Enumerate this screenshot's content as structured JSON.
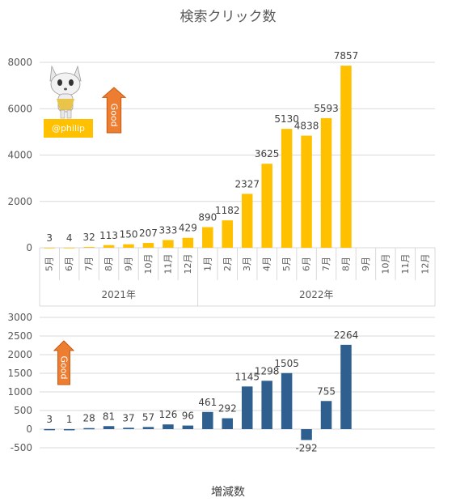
{
  "colors": {
    "bar_top": "#FFC000",
    "bar_bottom": "#2E5F8F",
    "grid": "#D9D9D9",
    "arrow": "#ED7D31",
    "arrow_stroke": "#C55A11",
    "badge": "#FFC000"
  },
  "badge": {
    "text": "@philip"
  },
  "arrows": [
    {
      "text": "Good"
    },
    {
      "text": "Good"
    }
  ],
  "chart_data": [
    {
      "type": "bar",
      "title": "検索クリック数",
      "categories": [
        "5月",
        "6月",
        "7月",
        "8月",
        "9月",
        "10月",
        "11月",
        "12月",
        "1月",
        "2月",
        "3月",
        "4月",
        "5月",
        "6月",
        "7月",
        "8月",
        "9月",
        "10月",
        "11月",
        "12月"
      ],
      "groups": [
        {
          "label": "2021年",
          "count": 8
        },
        {
          "label": "2022年",
          "count": 12
        }
      ],
      "values": [
        3,
        4,
        32,
        113,
        150,
        207,
        333,
        429,
        890,
        1182,
        2327,
        3625,
        5130,
        4838,
        5593,
        7857,
        null,
        null,
        null,
        null
      ],
      "ylim": [
        0,
        8000
      ],
      "yticks": [
        0,
        2000,
        4000,
        6000,
        8000
      ],
      "grid": true
    },
    {
      "type": "bar",
      "title": "増減数",
      "values": [
        3,
        1,
        28,
        81,
        37,
        57,
        126,
        96,
        461,
        292,
        1145,
        1298,
        1505,
        -292,
        755,
        2264,
        null,
        null,
        null,
        null
      ],
      "ylim": [
        -500,
        3000
      ],
      "yticks": [
        -500,
        0,
        500,
        1000,
        1500,
        2000,
        2500,
        3000
      ],
      "grid": true
    }
  ]
}
